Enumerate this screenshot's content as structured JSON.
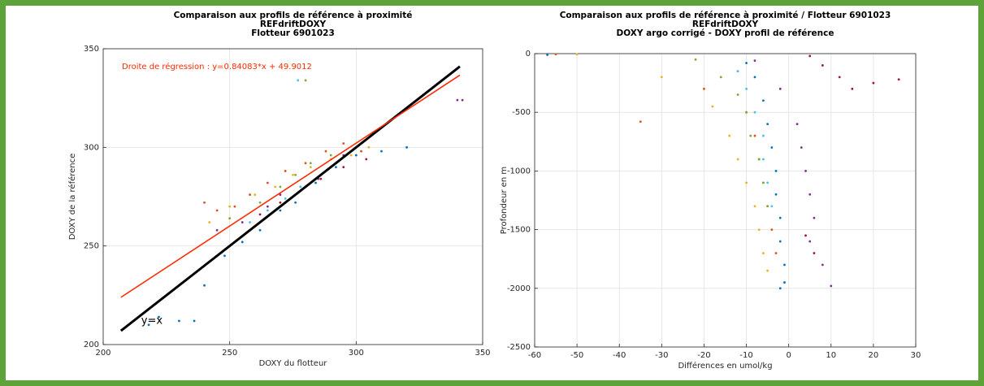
{
  "chart_data": [
    {
      "type": "scatter",
      "title": [
        "Comparaison aux profils de référence à proximité",
        "REFdriftDOXY",
        "Flotteur 6901023"
      ],
      "xlabel": "DOXY du flotteur",
      "ylabel": "DOXY de la référence",
      "xlim": [
        200,
        350
      ],
      "ylim": [
        200,
        350
      ],
      "xticks": [
        200,
        250,
        300,
        350
      ],
      "yticks": [
        200,
        250,
        300,
        350
      ],
      "grid": true,
      "series": [
        {
          "color": "#0072bd",
          "x": [
            218,
            222,
            230,
            236,
            240,
            248,
            255,
            262,
            270,
            276,
            284,
            292,
            300,
            310,
            320
          ],
          "values": [
            210,
            214,
            212,
            212,
            230,
            245,
            252,
            258,
            268,
            272,
            282,
            290,
            296,
            298,
            300
          ]
        },
        {
          "color": "#d95319",
          "x": [
            240,
            245,
            252,
            258,
            265,
            272,
            280,
            288,
            295,
            302
          ],
          "values": [
            272,
            268,
            270,
            276,
            282,
            288,
            292,
            298,
            302,
            298
          ]
        },
        {
          "color": "#edb120",
          "x": [
            242,
            250,
            260,
            268,
            275,
            282,
            290,
            298,
            305
          ],
          "values": [
            262,
            270,
            276,
            280,
            286,
            290,
            294,
            296,
            300
          ]
        },
        {
          "color": "#7e2f8e",
          "x": [
            245,
            255,
            265,
            270,
            278,
            285,
            290,
            295,
            340,
            342
          ],
          "values": [
            258,
            262,
            270,
            276,
            280,
            284,
            290,
            296,
            324,
            324
          ]
        },
        {
          "color": "#77ac30",
          "x": [
            250,
            262,
            270,
            276,
            282,
            290,
            280
          ],
          "values": [
            264,
            272,
            280,
            286,
            292,
            296,
            334
          ]
        },
        {
          "color": "#4dbeee",
          "x": [
            258,
            265,
            272,
            278,
            284,
            277
          ],
          "values": [
            262,
            268,
            274,
            280,
            284,
            334
          ]
        },
        {
          "color": "#a2142f",
          "x": [
            262,
            270,
            278,
            286,
            295,
            304
          ],
          "values": [
            266,
            272,
            278,
            284,
            290,
            294
          ]
        }
      ],
      "lines": [
        {
          "label": "y=x",
          "color": "#000000",
          "x": [
            207,
            341
          ],
          "values": [
            207,
            341
          ]
        },
        {
          "label": "Droite de régression : y=0.84083*x + 49.9012",
          "color": "#ff2a00",
          "x": [
            207,
            341
          ],
          "values": [
            223.95,
            336.62
          ]
        }
      ]
    },
    {
      "type": "scatter",
      "title": [
        "Comparaison aux profils de référence à proximité / Flotteur 6901023",
        "REFdriftDOXY",
        "DOXY argo corrigé - DOXY profil de référence"
      ],
      "xlabel": "Différences en umol/kg",
      "ylabel": "Profondeur en m",
      "xlim": [
        -60,
        30
      ],
      "ylim": [
        -2500,
        0
      ],
      "xticks": [
        -60,
        -50,
        -40,
        -30,
        -20,
        -10,
        0,
        10,
        20,
        30
      ],
      "yticks": [
        -2500,
        -2000,
        -1500,
        -1000,
        -500,
        0
      ],
      "grid": true,
      "series": [
        {
          "color": "#0072bd",
          "x": [
            -57,
            -10,
            -8,
            -6,
            -5,
            -4,
            -3,
            -3,
            -2,
            -2,
            -1,
            -1,
            -2
          ],
          "values": [
            -10,
            -80,
            -200,
            -400,
            -600,
            -800,
            -1000,
            -1200,
            -1400,
            -1600,
            -1800,
            -1950,
            -2000
          ]
        },
        {
          "color": "#d95319",
          "x": [
            -55,
            -35,
            -20,
            -12,
            -10,
            -8,
            -7,
            -6,
            -5,
            -4,
            -3
          ],
          "values": [
            -5,
            -580,
            -300,
            -150,
            -500,
            -700,
            -900,
            -1100,
            -1300,
            -1500,
            -1700
          ]
        },
        {
          "color": "#edb120",
          "x": [
            -50,
            -30,
            -18,
            -14,
            -12,
            -10,
            -8,
            -7,
            -6,
            -5
          ],
          "values": [
            -5,
            -200,
            -450,
            -700,
            -900,
            -1100,
            -1300,
            -1500,
            -1700,
            -1850
          ]
        },
        {
          "color": "#7e2f8e",
          "x": [
            -8,
            -2,
            2,
            3,
            4,
            5,
            6,
            5,
            8,
            10
          ],
          "values": [
            -60,
            -300,
            -600,
            -800,
            -1000,
            -1200,
            -1400,
            -1600,
            -1800,
            -1980
          ]
        },
        {
          "color": "#77ac30",
          "x": [
            -22,
            -16,
            -12,
            -10,
            -9,
            -7,
            -6,
            -5
          ],
          "values": [
            -50,
            -200,
            -350,
            -500,
            -700,
            -900,
            -1100,
            -1300
          ]
        },
        {
          "color": "#4dbeee",
          "x": [
            -12,
            -10,
            -8,
            -6,
            -6,
            -5,
            -4
          ],
          "values": [
            -150,
            -300,
            -500,
            -700,
            -900,
            -1100,
            -1300
          ]
        },
        {
          "color": "#a2142f",
          "x": [
            5,
            8,
            12,
            15,
            20,
            26,
            4,
            6
          ],
          "values": [
            -20,
            -100,
            -200,
            -300,
            -250,
            -220,
            -1550,
            -1700
          ]
        }
      ]
    }
  ]
}
